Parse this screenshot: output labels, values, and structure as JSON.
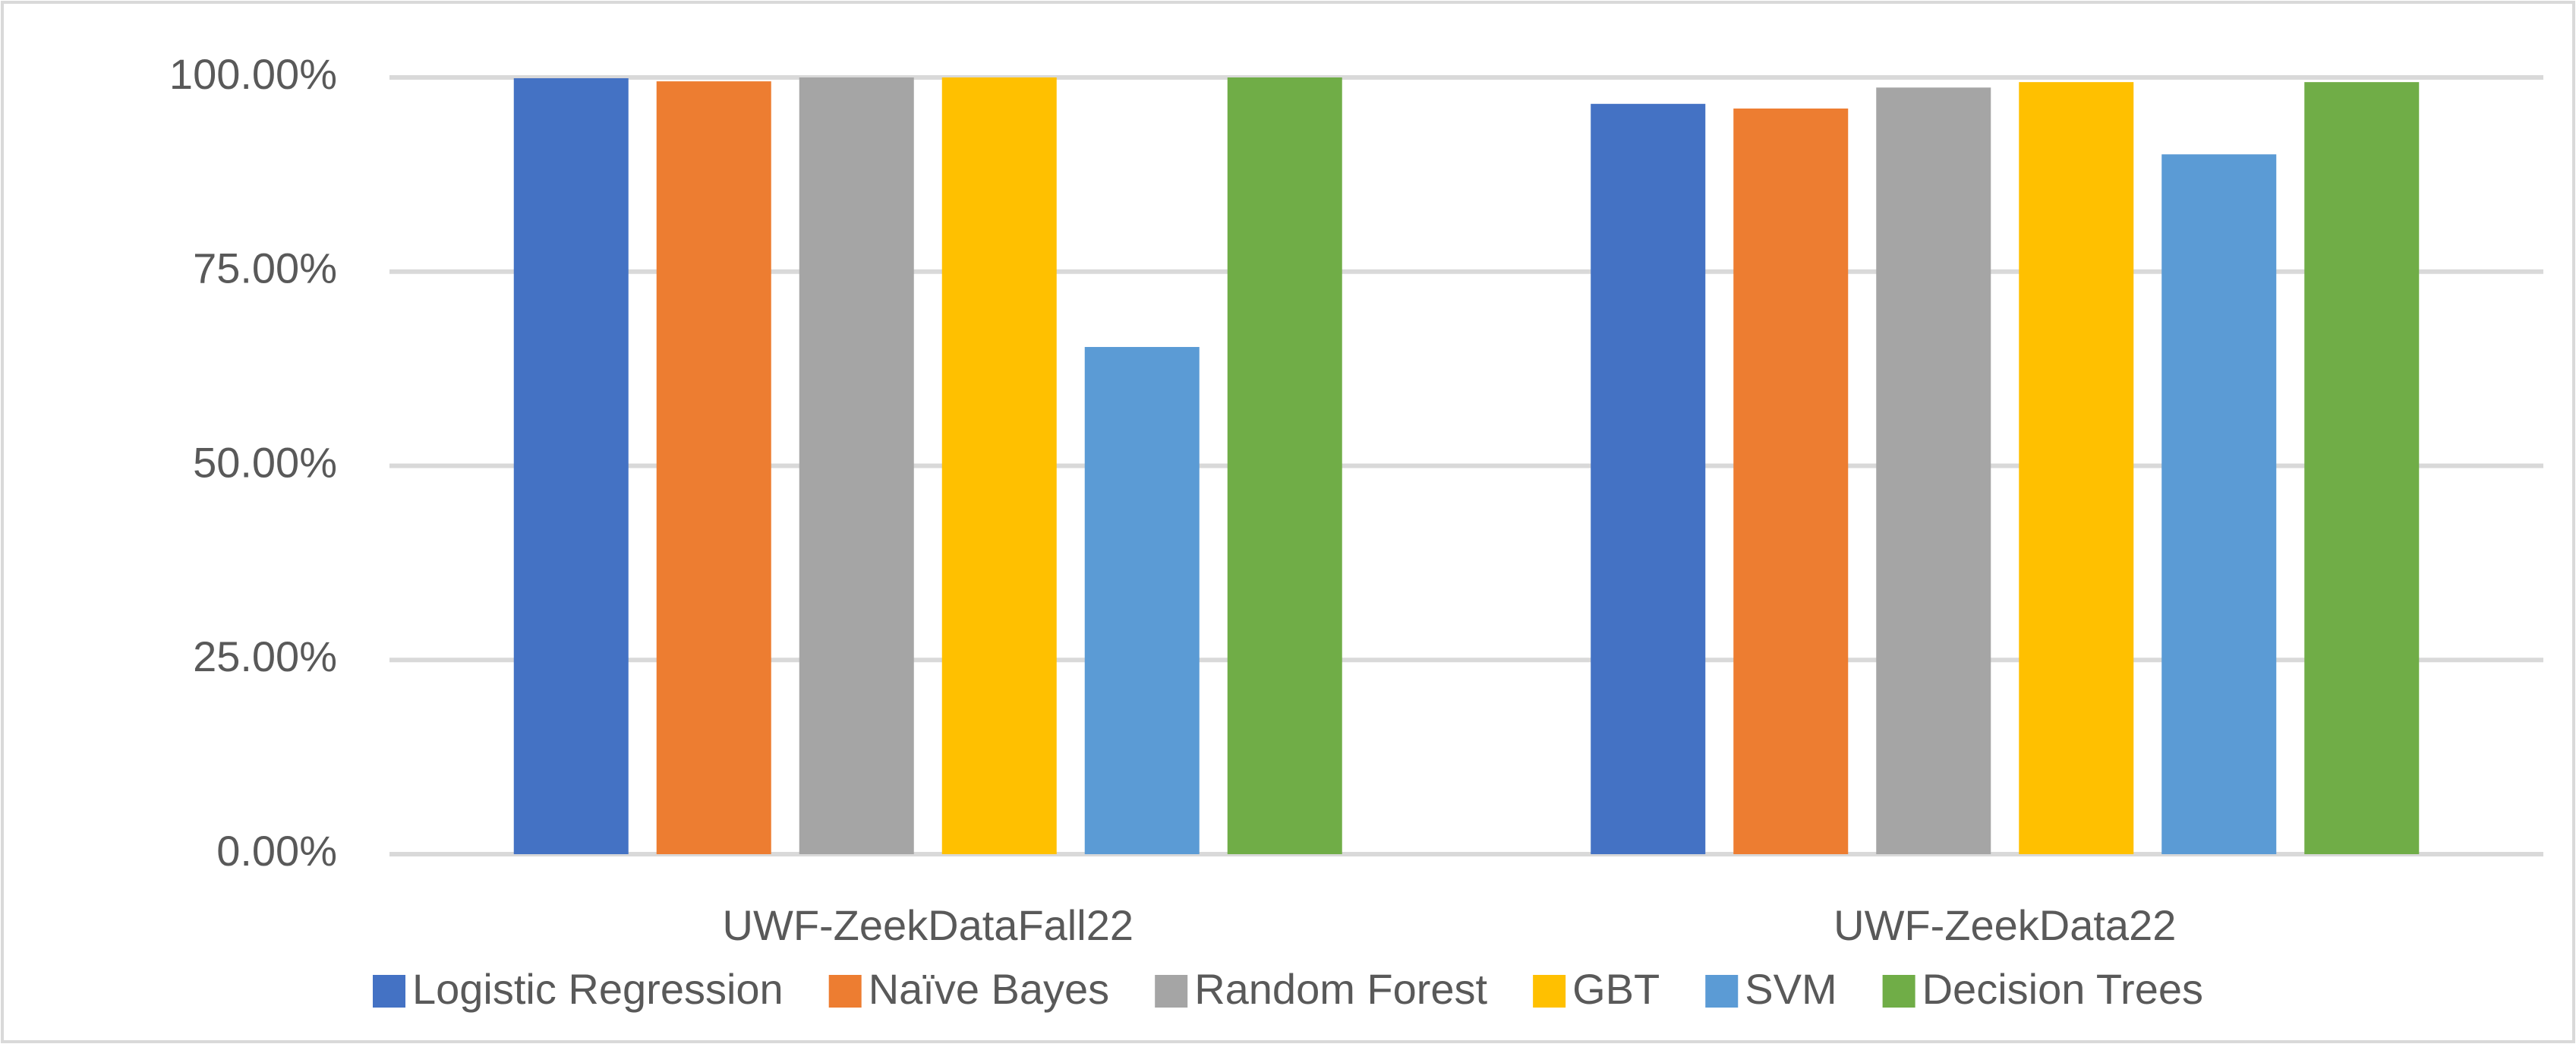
{
  "chart_data": {
    "type": "bar",
    "categories": [
      "UWF-ZeekDataFall22",
      "UWF-ZeekData22"
    ],
    "series": [
      {
        "name": "Logistic Regression",
        "color": "#4472c4",
        "values": [
          99.9,
          96.6
        ]
      },
      {
        "name": "Naïve Bayes",
        "color": "#ed7d31",
        "values": [
          99.5,
          96.0
        ]
      },
      {
        "name": "Random Forest",
        "color": "#a5a5a5",
        "values": [
          100,
          98.7
        ]
      },
      {
        "name": "GBT",
        "color": "#ffc000",
        "values": [
          100,
          99.4
        ]
      },
      {
        "name": "SVM",
        "color": "#5b9bd5",
        "values": [
          65.3,
          90.1
        ]
      },
      {
        "name": "Decision Trees",
        "color": "#70ad47",
        "values": [
          100,
          99.4
        ]
      }
    ],
    "ylim": [
      0,
      100
    ],
    "yticks": [
      {
        "value": 0,
        "label": "0.00%"
      },
      {
        "value": 25,
        "label": "25.00%"
      },
      {
        "value": 50,
        "label": "50.00%"
      },
      {
        "value": 75,
        "label": "75.00%"
      },
      {
        "value": 100,
        "label": "100.00%"
      }
    ],
    "grid": true,
    "legend": "bottom"
  }
}
